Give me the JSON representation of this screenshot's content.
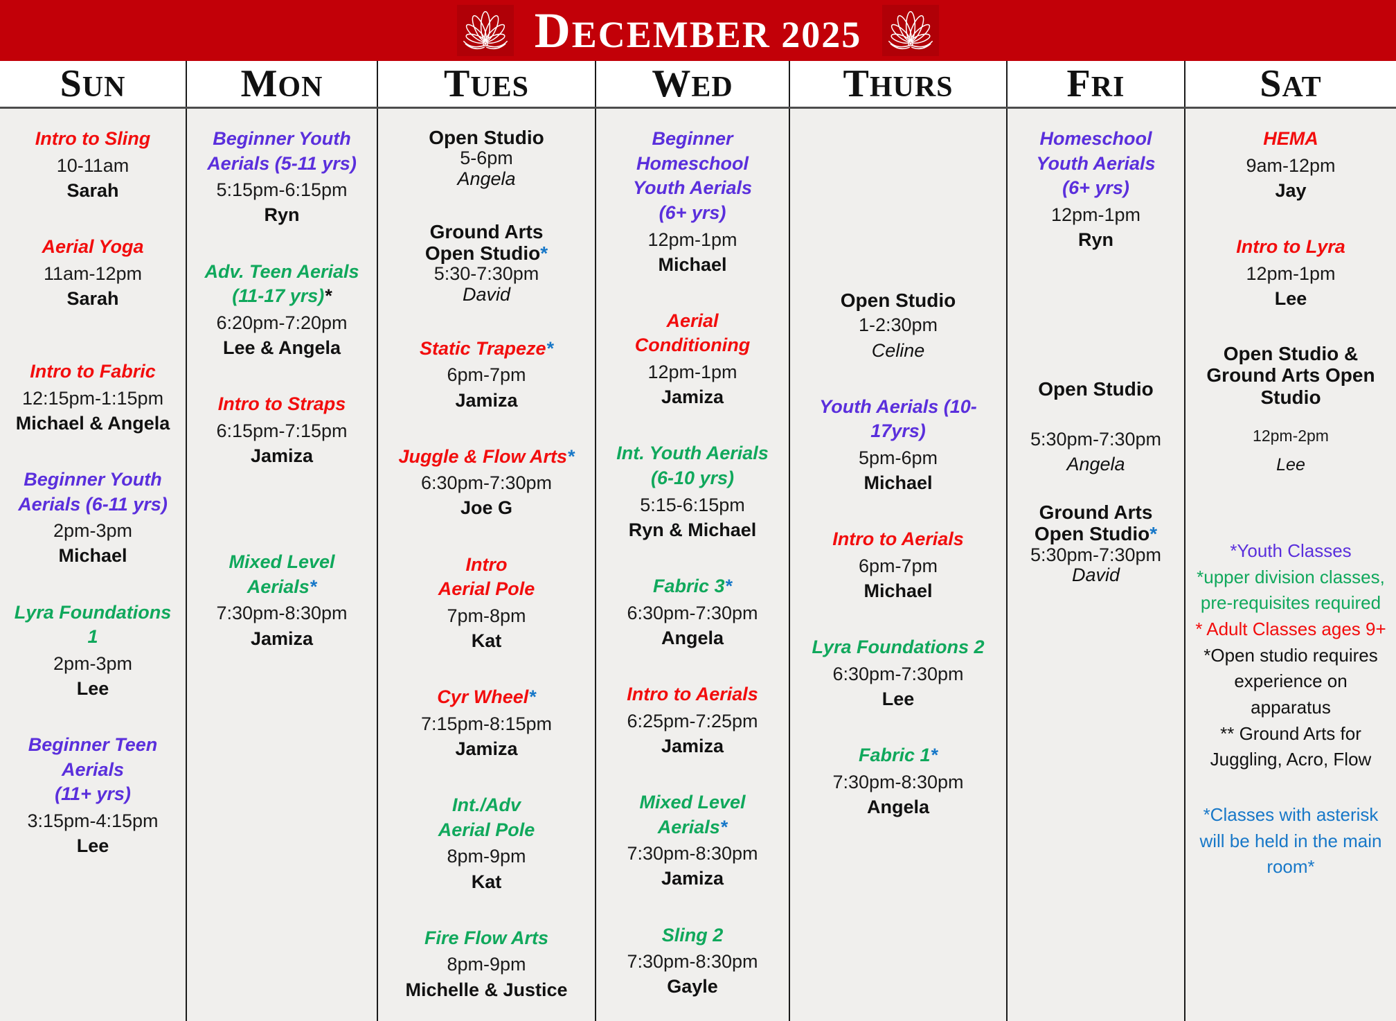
{
  "title": {
    "month_year": "December 2025"
  },
  "colors": {
    "red": "#F20D0D",
    "purple": "#5A2FDC",
    "green": "#10A85C",
    "blue": "#1878C8",
    "black": "#111111",
    "banner": "#C20008",
    "banner_patch": "#B00007",
    "column_bg": "#F0EFED"
  },
  "days": [
    {
      "label": "Sun",
      "classes": [
        {
          "title": "Intro to Sling",
          "color": "red",
          "time": "10-11am",
          "instructor": "Sarah"
        },
        {
          "title": "Aerial Yoga",
          "color": "red",
          "time": "11am-12pm",
          "instructor": "Sarah"
        },
        {
          "title": "Intro to Fabric",
          "color": "red",
          "time": "12:15pm-1:15pm",
          "instructor": "Michael & Angela"
        },
        {
          "title": "Beginner Youth\nAerials (6-11 yrs)",
          "color": "purple",
          "time": "2pm-3pm",
          "instructor": "Michael"
        },
        {
          "title": "Lyra Foundations\n1",
          "color": "green",
          "time": "2pm-3pm",
          "instructor": "Lee"
        },
        {
          "title": "Beginner Teen\nAerials\n(11+ yrs)",
          "color": "purple",
          "time": "3:15pm-4:15pm",
          "instructor": "Lee"
        }
      ]
    },
    {
      "label": "Mon",
      "classes": [
        {
          "title": "Beginner Youth\nAerials (5-11 yrs)",
          "color": "purple",
          "time": "5:15pm-6:15pm",
          "instructor": "Ryn"
        },
        {
          "title": "Adv. Teen Aerials\n(11-17 yrs)",
          "color": "green",
          "asterisk": "black",
          "time": "6:20pm-7:20pm",
          "instructor": "Lee & Angela"
        },
        {
          "title": "Intro to Straps",
          "color": "red",
          "time": "6:15pm-7:15pm",
          "instructor": "Jamiza"
        },
        {
          "title": "Mixed Level\nAerials",
          "color": "green",
          "asterisk": "blue",
          "time": "7:30pm-8:30pm",
          "instructor": "Jamiza"
        }
      ]
    },
    {
      "label": "Tues",
      "classes": [
        {
          "title": "Open Studio",
          "style": "plain",
          "tight": true,
          "time": "5-6pm",
          "instructor": "Angela",
          "instructor_style": "italic"
        },
        {
          "title": "Ground Arts\nOpen Studio",
          "style": "plain",
          "tight": true,
          "asterisk": "blue",
          "time": "5:30-7:30pm",
          "instructor": "David",
          "instructor_style": "italic"
        },
        {
          "title": "Static Trapeze",
          "color": "red",
          "asterisk": "blue",
          "time": "6pm-7pm",
          "instructor": "Jamiza"
        },
        {
          "title": "Juggle & Flow Arts",
          "color": "red",
          "asterisk": "blue",
          "time": "6:30pm-7:30pm",
          "instructor": "Joe G"
        },
        {
          "title": "Intro\nAerial Pole",
          "color": "red",
          "time": "7pm-8pm",
          "instructor": "Kat"
        },
        {
          "title": "Cyr Wheel",
          "color": "red",
          "asterisk": "blue",
          "time": "7:15pm-8:15pm",
          "instructor": "Jamiza"
        },
        {
          "title": "Int./Adv\nAerial Pole",
          "color": "green",
          "time": "8pm-9pm",
          "instructor": "Kat"
        },
        {
          "title": "Fire Flow Arts",
          "color": "green",
          "time": "8pm-9pm",
          "instructor": "Michelle & Justice"
        }
      ]
    },
    {
      "label": "Wed",
      "classes": [
        {
          "title": "Beginner\nHomeschool\nYouth Aerials\n(6+ yrs)",
          "color": "purple",
          "time": "12pm-1pm",
          "instructor": "Michael"
        },
        {
          "title": "Aerial\nConditioning",
          "color": "red",
          "time": "12pm-1pm",
          "instructor": "Jamiza"
        },
        {
          "title": "Int. Youth Aerials\n(6-10 yrs)",
          "color": "green",
          "time": "5:15-6:15pm",
          "instructor": "Ryn & Michael"
        },
        {
          "title": "Fabric 3",
          "color": "green",
          "asterisk": "blue",
          "time": "6:30pm-7:30pm",
          "instructor": "Angela"
        },
        {
          "title": "Intro to Aerials",
          "color": "red",
          "time": "6:25pm-7:25pm",
          "instructor": "Jamiza"
        },
        {
          "title": "Mixed Level\nAerials",
          "color": "green",
          "asterisk": "blue",
          "time": "7:30pm-8:30pm",
          "instructor": "Jamiza"
        },
        {
          "title": "Sling 2",
          "color": "green",
          "time": "7:30pm-8:30pm",
          "instructor": "Gayle"
        }
      ]
    },
    {
      "label": "Thurs",
      "classes": [
        {
          "title": "Open Studio",
          "style": "plain",
          "time": "1-2:30pm",
          "instructor": "Celine",
          "instructor_style": "italic"
        },
        {
          "title": "Youth Aerials (10-\n17yrs)",
          "color": "purple",
          "time": "5pm-6pm",
          "instructor": "Michael"
        },
        {
          "title": "Intro to Aerials",
          "color": "red",
          "time": "6pm-7pm",
          "instructor": "Michael"
        },
        {
          "title": "Lyra Foundations 2",
          "color": "green",
          "time": "6:30pm-7:30pm",
          "instructor": "Lee"
        },
        {
          "title": "Fabric 1",
          "color": "green",
          "asterisk": "blue",
          "time": "7:30pm-8:30pm",
          "instructor": "Angela"
        }
      ]
    },
    {
      "label": "Fri",
      "classes": [
        {
          "title": "Homeschool\nYouth Aerials\n(6+ yrs)",
          "color": "purple",
          "time": "12pm-1pm",
          "instructor": "Ryn"
        },
        {
          "title": "Open Studio",
          "style": "plain",
          "time": "5:30pm-7:30pm",
          "instructor": "Angela",
          "instructor_style": "italic"
        },
        {
          "title": "Ground Arts\nOpen Studio",
          "style": "plain",
          "tight": true,
          "asterisk": "blue",
          "time": "5:30pm-7:30pm",
          "instructor": "David",
          "instructor_style": "italic"
        }
      ]
    },
    {
      "label": "Sat",
      "classes": [
        {
          "title": "HEMA",
          "color": "red",
          "time": "9am-12pm",
          "instructor": "Jay"
        },
        {
          "title": "Intro to Lyra",
          "color": "red",
          "time": "12pm-1pm",
          "instructor": "Lee"
        },
        {
          "title": "Open Studio &\nGround Arts Open\nStudio",
          "style": "plain",
          "tight": true,
          "small": true,
          "time": "12pm-2pm",
          "instructor": "Lee",
          "instructor_style": "italic"
        }
      ],
      "notes": [
        {
          "text": "*Youth Classes",
          "color": "purple"
        },
        {
          "text": "*upper division classes,\npre-requisites required",
          "color": "green"
        },
        {
          "text": "* Adult Classes ages 9+",
          "color": "red"
        },
        {
          "text": "*Open studio requires\nexperience on\napparatus",
          "color": "black"
        },
        {
          "text": "** Ground Arts for\nJuggling, Acro, Flow",
          "color": "black"
        },
        {
          "text": "*Classes with asterisk\nwill be held in the main\nroom*",
          "color": "blue"
        }
      ]
    }
  ]
}
